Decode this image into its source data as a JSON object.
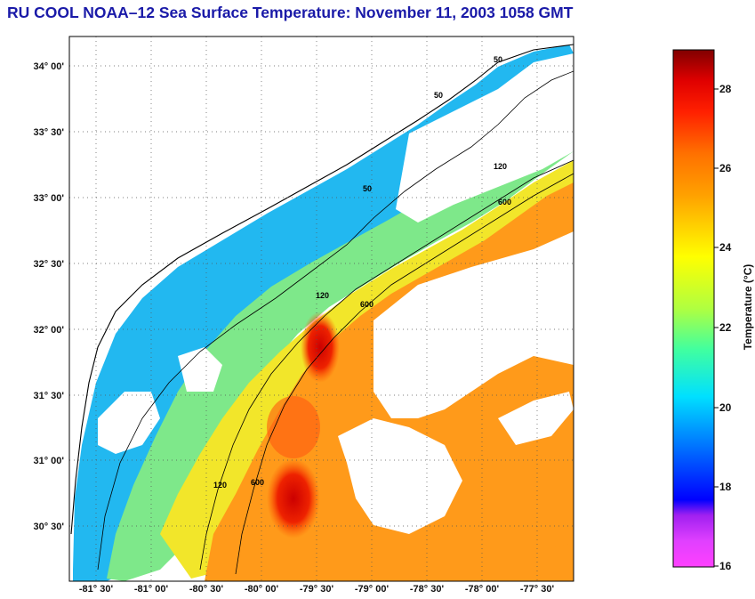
{
  "title": "RU COOL  NOAA–12  Sea Surface Temperature:  November 11, 2003 1058 GMT",
  "map": {
    "lon_range": [
      -81.75,
      -77.25
    ],
    "lat_range": [
      30.25,
      34.17
    ],
    "lon_ticks": [
      "-81° 30'",
      "-81° 00'",
      "-80° 30'",
      "-80° 00'",
      "-79° 30'",
      "-79° 00'",
      "-78° 30'",
      "-78° 00'",
      "-77° 30'"
    ],
    "lat_ticks": [
      "34° 00'",
      "33° 30'",
      "33° 00'",
      "32° 30'",
      "32° 00'",
      "31° 30'",
      "31° 00'",
      "30° 30'"
    ],
    "contour_labels": {
      "c50": "50",
      "c120": "120",
      "c600": "600"
    },
    "colors": {
      "land": "#ffffff",
      "grid": "#555555",
      "coast": "#000000"
    }
  },
  "colorbar": {
    "label": "Temperature (°C)",
    "min": 16,
    "max": 29,
    "ticks": [
      "28",
      "26",
      "24",
      "22",
      "20",
      "18",
      "16"
    ],
    "colors": [
      "#ff40ff",
      "#a020f0",
      "#0000ff",
      "#0080ff",
      "#00ffff",
      "#80ff80",
      "#ffff00",
      "#ffa000",
      "#ff4000",
      "#ff0000",
      "#800000"
    ]
  }
}
